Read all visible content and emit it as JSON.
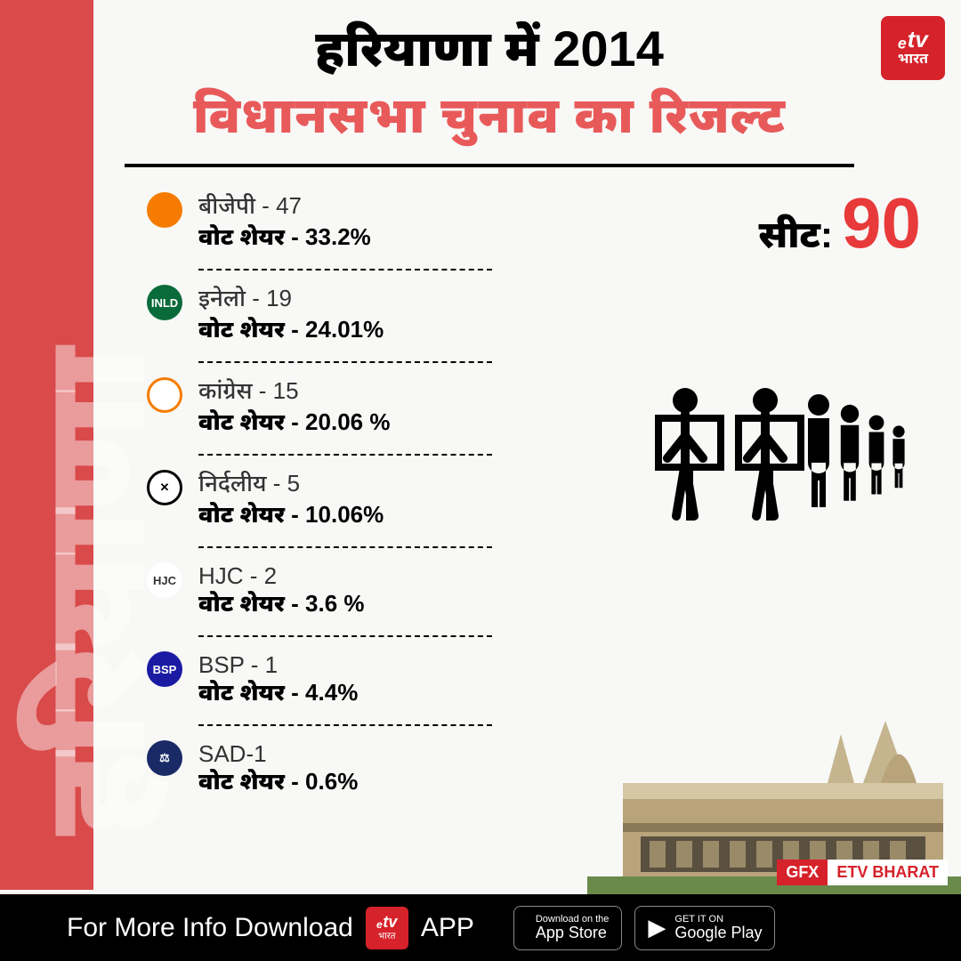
{
  "sidebar_text": "हरियाणा",
  "logo": {
    "top": "ₑtv",
    "bottom": "भारत"
  },
  "title": {
    "line1": "हरियाणा में 2014",
    "line2": "विधानसभा चुनाव का रिजल्ट"
  },
  "seat": {
    "label": "सीट:",
    "value": "90"
  },
  "parties": [
    {
      "icon_bg": "#f57c00",
      "icon_text": "",
      "name": "बीजेपी  - 47",
      "share": "वोट शेयर - 33.2%"
    },
    {
      "icon_bg": "#0a6b3a",
      "icon_text": "INLD",
      "name": "इनेलो - 19",
      "share": "वोट शेयर - 24.01%"
    },
    {
      "icon_bg": "#fff",
      "icon_border": "#f57c00",
      "icon_text": "",
      "name": "कांग्रेस - 15",
      "share": "वोट शेयर - 20.06 %"
    },
    {
      "icon_bg": "#fff",
      "icon_border": "#000",
      "icon_text": "✕",
      "icon_color": "#000",
      "name": "निर्दलीय - 5",
      "share": "वोट शेयर - 10.06%"
    },
    {
      "icon_bg": "#fff",
      "icon_text": "HJC",
      "icon_color": "#333",
      "name": "HJC - 2",
      "share": "वोट शेयर - 3.6 %"
    },
    {
      "icon_bg": "#1a1aa3",
      "icon_text": "BSP",
      "name": "BSP - 1",
      "share": "वोट शेयर - 4.4%"
    },
    {
      "icon_bg": "#1a2a66",
      "icon_text": "⚖",
      "name": "SAD-1",
      "share": "वोट शेयर - 0.6%"
    }
  ],
  "gfx": {
    "left": "GFX",
    "right": "ETV BHARAT"
  },
  "footer": {
    "text": "For More Info Download",
    "app": "APP",
    "appstore": {
      "small": "Download on the",
      "big": "App Store"
    },
    "playstore": {
      "small": "GET IT ON",
      "big": "Google Play"
    }
  }
}
